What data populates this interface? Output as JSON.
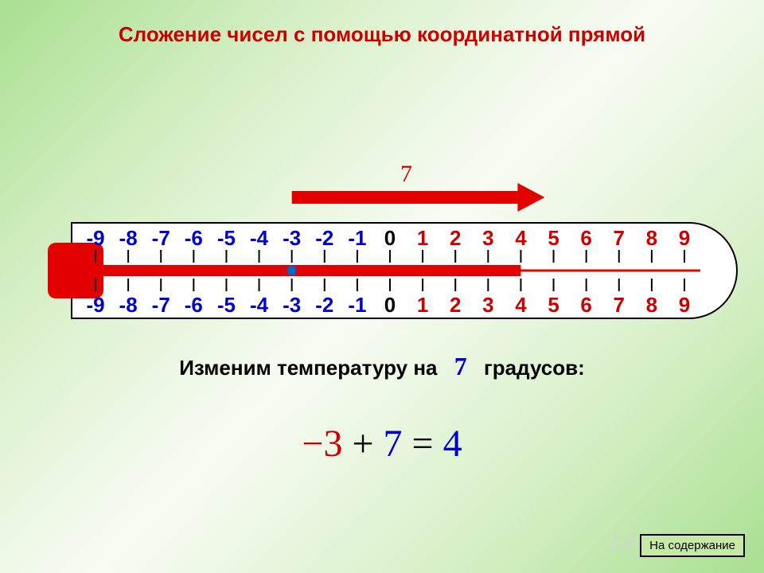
{
  "title": {
    "text": "Сложение чисел с помощью координатной прямой",
    "color": "#cc0000",
    "fontsize": 26
  },
  "sentence": {
    "before": "Изменим температуру на",
    "value": "7",
    "after": "градусов:",
    "value_color": "#0000d0",
    "text_color": "#000000",
    "fontsize": 26,
    "value_fontsize": 32
  },
  "equation": {
    "parts": [
      {
        "t": "−",
        "c": "#cc0000"
      },
      {
        "t": "3",
        "c": "#cc0000"
      },
      {
        "t": " + ",
        "c": "#000000"
      },
      {
        "t": "7",
        "c": "#0000d0"
      },
      {
        "t": " = ",
        "c": "#000000"
      },
      {
        "t": " 4",
        "c": "#0000d0"
      }
    ],
    "fontsize": 48
  },
  "button": {
    "label": "На содержание",
    "bg": "#c6e9a8"
  },
  "watermark": "MyShared",
  "thermometer": {
    "min": -9,
    "max": 9,
    "arrow": {
      "from": -3,
      "to": 4,
      "label": "7",
      "label_color": "#cc0000"
    },
    "mercury_to": 4,
    "dot_at": -3,
    "colors": {
      "neg": "#0000d0",
      "zero": "#000000",
      "pos": "#cc0000",
      "outline": "#000000",
      "mercury": "#e30000",
      "dot": "#0066cc",
      "tube": "#ffffff"
    },
    "top_labels": [
      {
        "v": -9,
        "t": "-9"
      },
      {
        "v": -8,
        "t": "-8"
      },
      {
        "v": -7,
        "t": "-7"
      },
      {
        "v": -6,
        "t": "-6"
      },
      {
        "v": -5,
        "t": "-5"
      },
      {
        "v": -4,
        "t": "-4"
      },
      {
        "v": -3,
        "t": "-3"
      },
      {
        "v": -2,
        "t": "-2"
      },
      {
        "v": -1,
        "t": "-1"
      },
      {
        "v": 0,
        "t": "0"
      },
      {
        "v": 1,
        "t": "1"
      },
      {
        "v": 2,
        "t": "2"
      },
      {
        "v": 3,
        "t": "3"
      },
      {
        "v": 4,
        "t": "4"
      },
      {
        "v": 5,
        "t": "5"
      },
      {
        "v": 6,
        "t": "6"
      },
      {
        "v": 7,
        "t": "7"
      },
      {
        "v": 8,
        "t": "8"
      },
      {
        "v": 9,
        "t": "9"
      }
    ],
    "bottom_labels": [
      {
        "v": -9,
        "t": "-9"
      },
      {
        "v": -8,
        "t": "-8"
      },
      {
        "v": -7,
        "t": "-7"
      },
      {
        "v": -6,
        "t": "-6"
      },
      {
        "v": -5,
        "t": "-5"
      },
      {
        "v": -4,
        "t": "-4"
      },
      {
        "v": -3,
        "t": "-3"
      },
      {
        "v": -2,
        "t": "-2"
      },
      {
        "v": -1,
        "t": "-1"
      },
      {
        "v": 0,
        "t": "0"
      },
      {
        "v": 1,
        "t": "1"
      },
      {
        "v": 2,
        "t": "2"
      },
      {
        "v": 3,
        "t": "3"
      },
      {
        "v": 4,
        "t": "4"
      },
      {
        "v": 5,
        "t": "5"
      },
      {
        "v": 6,
        "t": "6"
      },
      {
        "v": 7,
        "t": "7"
      },
      {
        "v": 8,
        "t": "8"
      },
      {
        "v": 9,
        "t": "9"
      }
    ],
    "label_fontsize": 26,
    "label_weight": "bold"
  }
}
